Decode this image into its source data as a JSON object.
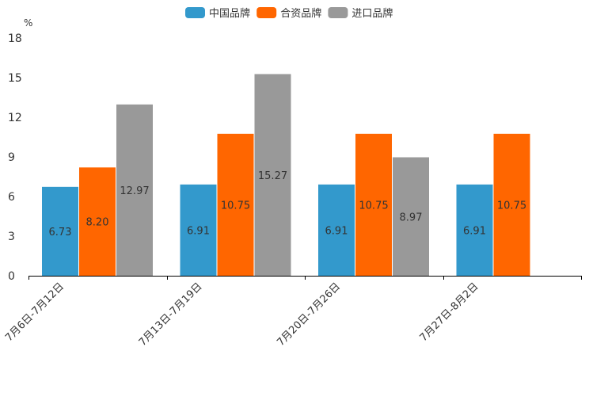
{
  "chart_data": {
    "type": "bar",
    "title": "",
    "ylabel": "%",
    "xlabel": "",
    "ylim": [
      0,
      18
    ],
    "yticks": [
      "0",
      "3",
      "6",
      "9",
      "12",
      "15",
      "18"
    ],
    "categories": [
      "7月6日-7月12日",
      "7月13日-7月19日",
      "7月20日-7月26日",
      "7月27日-8月2日"
    ],
    "legend_position": "top-center",
    "grid": false,
    "series": [
      {
        "name": "中国品牌",
        "color": "#3399cc",
        "values": [
          6.73,
          6.91,
          6.91,
          6.91
        ],
        "labels": [
          "6.73",
          "6.91",
          "6.91",
          "6.91"
        ]
      },
      {
        "name": "合资品牌",
        "color": "#ff6600",
        "values": [
          8.2,
          10.75,
          10.75,
          10.75
        ],
        "labels": [
          "8.20",
          "10.75",
          "10.75",
          "10.75"
        ]
      },
      {
        "name": "进口品牌",
        "color": "#999999",
        "values": [
          12.97,
          15.27,
          8.97,
          null
        ],
        "labels": [
          "12.97",
          "15.27",
          "8.97",
          null
        ]
      }
    ]
  }
}
